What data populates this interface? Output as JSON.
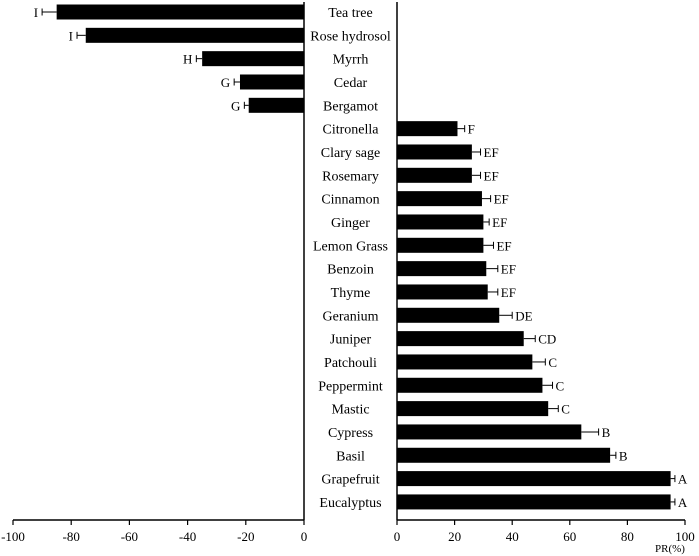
{
  "chart_data": {
    "type": "bar",
    "orientation": "horizontal",
    "xlabel": "PR(%)",
    "xlim": [
      -100,
      100
    ],
    "x_ticks": [
      "-100",
      "-80",
      "-60",
      "-40",
      "-20",
      "0",
      "0",
      "20",
      "40",
      "60",
      "80",
      "100"
    ],
    "grid": false,
    "categories": [
      "Tea tree",
      "Rose hydrosol",
      "Myrrh",
      "Cedar",
      "Bergamot",
      "Citronella",
      "Clary sage",
      "Rosemary",
      "Cinnamon",
      "Ginger",
      "Lemon Grass",
      "Benzoin",
      "Thyme",
      "Geranium",
      "Juniper",
      "Patchouli",
      "Peppermint",
      "Mastic",
      "Cypress",
      "Basil",
      "Grapefruit",
      "Eucalyptus"
    ],
    "values": [
      -85,
      -75,
      -35,
      -22,
      -19,
      21,
      26,
      26,
      29.5,
      30,
      30,
      31,
      31.5,
      35.5,
      44,
      47,
      50.5,
      52.5,
      64,
      74,
      95,
      95
    ],
    "errors": [
      5,
      3,
      2,
      2,
      1.5,
      2.5,
      3,
      3,
      3,
      2,
      3.5,
      4,
      3.5,
      4.5,
      4,
      4.5,
      3.5,
      3.5,
      6,
      2,
      1.5,
      1.5
    ],
    "significance": [
      "I",
      "I",
      "H",
      "G",
      "G",
      "F",
      "EF",
      "EF",
      "EF",
      "EF",
      "EF",
      "EF",
      "EF",
      "DE",
      "CD",
      "C",
      "C",
      "C",
      "B",
      "B",
      "A",
      "A"
    ],
    "bar_color": "#000000"
  }
}
